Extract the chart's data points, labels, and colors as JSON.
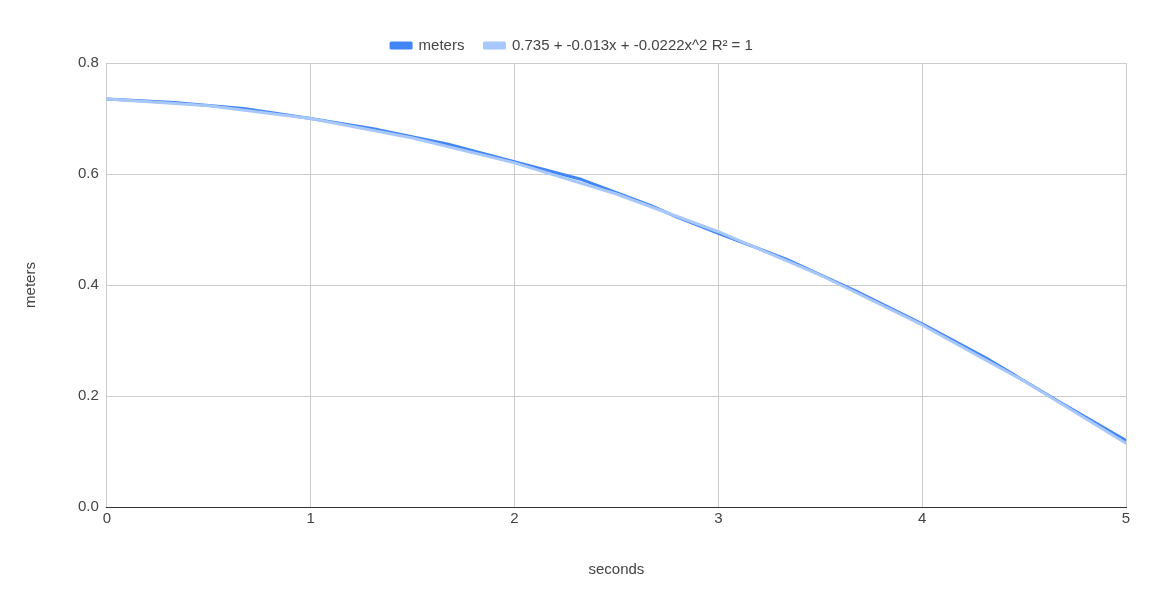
{
  "chart_data": {
    "type": "line",
    "xlabel": "seconds",
    "ylabel": "meters",
    "xlim": [
      0,
      5
    ],
    "xticks": [
      0,
      1,
      2,
      3,
      4,
      5
    ],
    "ylim": [
      0,
      0.8
    ],
    "yticks": [
      {
        "value": 0,
        "label": "0.0"
      },
      {
        "value": 0.2,
        "label": "0.2"
      },
      {
        "value": 0.4,
        "label": "0.4"
      },
      {
        "value": 0.6,
        "label": "0.6"
      },
      {
        "value": 0.8,
        "label": "0.8"
      }
    ],
    "grid": true,
    "legend": "top",
    "marker": "none",
    "line_style": "solid",
    "series": [
      {
        "name": "meters",
        "color": "#4285f4",
        "x": [
          0,
          0.33,
          0.67,
          1,
          1.33,
          1.67,
          2,
          2.33,
          2.67,
          2.8,
          3,
          3.33,
          3.67,
          4,
          4.33,
          4.67,
          5
        ],
        "values": [
          0.735,
          0.729,
          0.718,
          0.7,
          0.68,
          0.654,
          0.622,
          0.59,
          0.543,
          0.522,
          0.493,
          0.447,
          0.39,
          0.33,
          0.265,
          0.19,
          0.12
        ]
      },
      {
        "name": "0.735 + -0.013x + -0.0222x^2 R² = 1",
        "color": "#a8c7fa",
        "type": "line",
        "x": [
          0,
          0.5,
          1,
          1.5,
          2,
          2.5,
          3,
          3.5,
          4,
          4.5,
          5
        ],
        "values": [
          0.735,
          0.723,
          0.7,
          0.665,
          0.62,
          0.564,
          0.496,
          0.418,
          0.328,
          0.227,
          0.115
        ]
      }
    ]
  }
}
